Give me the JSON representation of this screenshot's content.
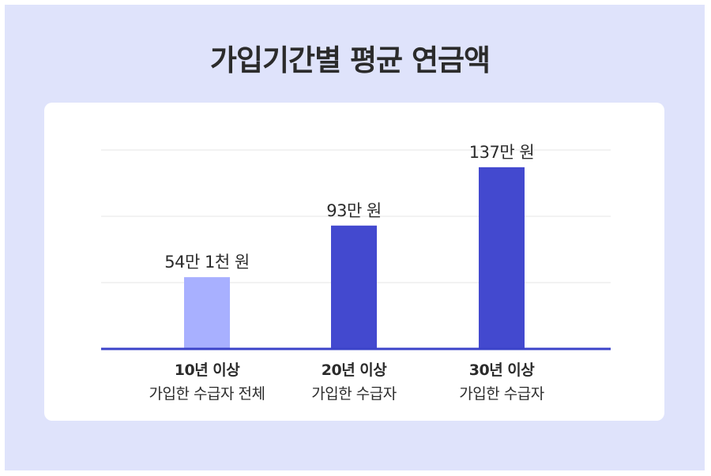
{
  "title": "가입기간별 평균 연금액",
  "chart_data": {
    "type": "bar",
    "categories": [
      {
        "line1": "10년 이상",
        "line2": "가입한 수급자 전체"
      },
      {
        "line1": "20년 이상",
        "line2": "가입한 수급자"
      },
      {
        "line1": "30년 이상",
        "line2": "가입한 수급자"
      }
    ],
    "values": [
      54.1,
      93,
      137
    ],
    "data_labels": [
      "54만 1천 원",
      "93만 원",
      "137만 원"
    ],
    "colors": [
      "#a8b0ff",
      "#4349cf",
      "#4349cf"
    ],
    "axis_color": "#3b43c9",
    "grid": true,
    "ylim": [
      0,
      150
    ],
    "gridlines": [
      50,
      100,
      150
    ]
  }
}
